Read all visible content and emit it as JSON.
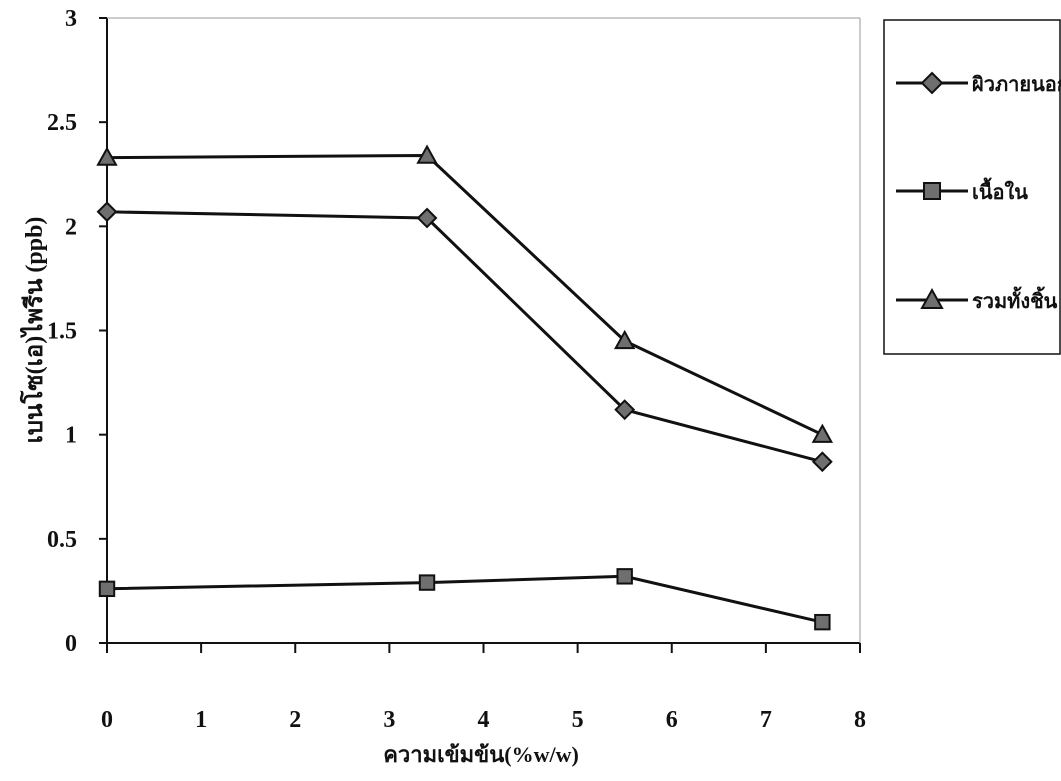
{
  "chart_data": {
    "type": "line",
    "title": "",
    "xlabel": "ความเข้มข้น(%w/w)",
    "ylabel": "เบนโซ(เอ)ไพรีน (ppb)",
    "xlim": [
      0,
      8
    ],
    "ylim": [
      0,
      3
    ],
    "x_ticks": [
      "0",
      "1",
      "2",
      "3",
      "4",
      "5",
      "6",
      "7",
      "8"
    ],
    "y_ticks": [
      "0",
      "0.5",
      "1",
      "1.5",
      "2",
      "2.5",
      "3"
    ],
    "grid": false,
    "legend_position": "right",
    "series": [
      {
        "name": "ผิวภายนอก",
        "marker": "diamond",
        "color": "#111111",
        "points": [
          [
            0,
            2.07
          ],
          [
            3.4,
            2.04
          ],
          [
            5.5,
            1.12
          ],
          [
            7.6,
            0.87
          ]
        ]
      },
      {
        "name": "เนื้อใน",
        "marker": "square",
        "color": "#111111",
        "points": [
          [
            0,
            0.26
          ],
          [
            3.4,
            0.29
          ],
          [
            5.5,
            0.32
          ],
          [
            7.6,
            0.1
          ]
        ]
      },
      {
        "name": "รวมทั้งชิ้น",
        "marker": "triangle",
        "color": "#111111",
        "points": [
          [
            0,
            2.33
          ],
          [
            3.4,
            2.34
          ],
          [
            5.5,
            1.45
          ],
          [
            7.6,
            1.0
          ]
        ]
      }
    ]
  }
}
